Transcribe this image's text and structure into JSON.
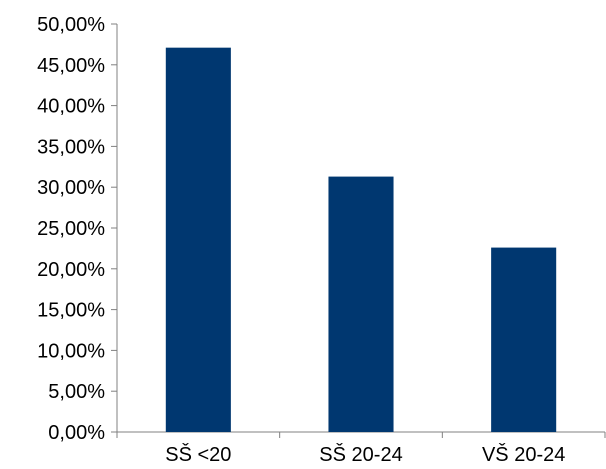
{
  "chart_data": {
    "type": "bar",
    "categories": [
      "SŠ <20",
      "SŠ 20-24",
      "VŠ 20-24"
    ],
    "series": [
      {
        "values": [
          47.1,
          31.3,
          22.6
        ]
      }
    ],
    "ylim": [
      0,
      50
    ],
    "yticks": [
      "0,00%",
      "5,00%",
      "10,00%",
      "15,00%",
      "20,00%",
      "25,00%",
      "30,00%",
      "35,00%",
      "40,00%",
      "45,00%",
      "50,00%"
    ],
    "ystep": 5,
    "grid": false,
    "legend": "none",
    "colors": {
      "bar": "#003770",
      "axis": "#808080"
    }
  }
}
